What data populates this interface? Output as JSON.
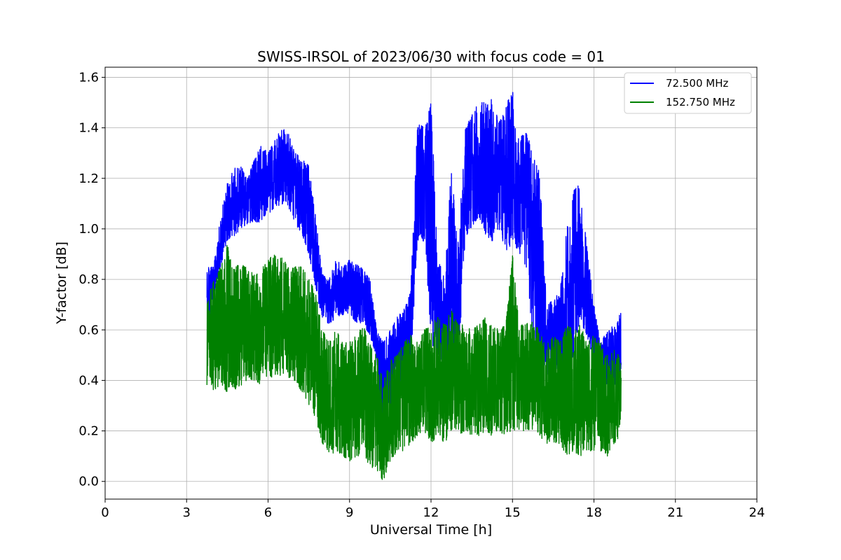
{
  "chart_data": {
    "type": "line",
    "title": "SWISS-IRSOL of 2023/06/30 with focus code = 01",
    "xlabel": "Universal Time [h]",
    "ylabel": "Y-factor [dB]",
    "xlim": [
      0,
      24
    ],
    "ylim": [
      -0.07,
      1.64
    ],
    "xticks": [
      0,
      3,
      6,
      9,
      12,
      15,
      18,
      21,
      24
    ],
    "yticks": [
      0.0,
      0.2,
      0.4,
      0.6,
      0.8,
      1.0,
      1.2,
      1.4,
      1.6
    ],
    "xtick_labels": [
      "0",
      "3",
      "6",
      "9",
      "12",
      "15",
      "18",
      "21",
      "24"
    ],
    "ytick_labels": [
      "0.0",
      "0.2",
      "0.4",
      "0.6",
      "0.8",
      "1.0",
      "1.2",
      "1.4",
      "1.6"
    ],
    "grid": true,
    "legend_position": "top-right",
    "series": [
      {
        "name": " 72.500 MHz",
        "color": "#0000ff",
        "x": [
          3.75,
          4.0,
          4.25,
          4.5,
          4.75,
          5.0,
          5.25,
          5.5,
          5.75,
          6.0,
          6.25,
          6.5,
          6.75,
          7.0,
          7.25,
          7.5,
          7.75,
          8.0,
          8.25,
          8.5,
          8.75,
          9.0,
          9.25,
          9.5,
          9.75,
          10.0,
          10.25,
          10.5,
          10.75,
          11.0,
          11.25,
          11.5,
          11.75,
          12.0,
          12.25,
          12.5,
          12.75,
          13.0,
          13.25,
          13.5,
          13.75,
          14.0,
          14.25,
          14.5,
          14.75,
          15.0,
          15.25,
          15.5,
          15.75,
          16.0,
          16.25,
          16.5,
          16.75,
          17.0,
          17.25,
          17.5,
          17.75,
          18.0,
          18.25,
          18.5,
          18.75,
          19.0
        ],
        "low": [
          0.58,
          0.72,
          0.85,
          0.95,
          0.97,
          1.0,
          1.02,
          1.03,
          1.02,
          1.06,
          1.08,
          1.1,
          1.08,
          1.02,
          0.98,
          0.9,
          0.75,
          0.65,
          0.62,
          0.65,
          0.66,
          0.65,
          0.63,
          0.62,
          0.58,
          0.48,
          0.2,
          0.3,
          0.35,
          0.38,
          0.45,
          0.95,
          0.95,
          0.55,
          0.48,
          0.42,
          0.42,
          0.45,
          0.95,
          1.0,
          1.05,
          0.98,
          0.95,
          1.0,
          0.9,
          0.95,
          0.9,
          0.85,
          0.55,
          0.48,
          0.42,
          0.45,
          0.42,
          0.45,
          0.5,
          0.65,
          0.55,
          0.45,
          0.4,
          0.38,
          0.38,
          0.4
        ],
        "high": [
          0.87,
          0.85,
          1.05,
          1.18,
          1.24,
          1.25,
          1.2,
          1.28,
          1.33,
          1.3,
          1.35,
          1.4,
          1.38,
          1.3,
          1.28,
          1.25,
          1.05,
          0.82,
          0.8,
          0.88,
          0.85,
          0.88,
          0.86,
          0.84,
          0.8,
          0.6,
          0.55,
          0.6,
          0.65,
          0.68,
          0.75,
          1.42,
          1.4,
          1.5,
          0.9,
          0.8,
          1.25,
          0.95,
          1.4,
          1.45,
          1.5,
          1.5,
          1.52,
          1.42,
          1.48,
          1.56,
          1.35,
          1.4,
          1.3,
          1.25,
          0.7,
          0.72,
          0.75,
          1.0,
          1.15,
          1.18,
          0.92,
          0.7,
          0.55,
          0.6,
          0.62,
          0.67
        ]
      },
      {
        "name": "152.750 MHz",
        "color": "#008000",
        "x": [
          3.75,
          4.0,
          4.25,
          4.5,
          4.75,
          5.0,
          5.25,
          5.5,
          5.75,
          6.0,
          6.25,
          6.5,
          6.75,
          7.0,
          7.25,
          7.5,
          7.75,
          8.0,
          8.25,
          8.5,
          8.75,
          9.0,
          9.25,
          9.5,
          9.75,
          10.0,
          10.25,
          10.5,
          10.75,
          11.0,
          11.25,
          11.5,
          11.75,
          12.0,
          12.25,
          12.5,
          12.75,
          13.0,
          13.25,
          13.5,
          13.75,
          14.0,
          14.25,
          14.5,
          14.75,
          15.0,
          15.25,
          15.5,
          15.75,
          16.0,
          16.25,
          16.5,
          16.75,
          17.0,
          17.25,
          17.5,
          17.75,
          18.0,
          18.25,
          18.5,
          18.75,
          19.0
        ],
        "low": [
          0.38,
          0.36,
          0.38,
          0.35,
          0.36,
          0.38,
          0.4,
          0.4,
          0.38,
          0.4,
          0.42,
          0.42,
          0.4,
          0.4,
          0.35,
          0.3,
          0.25,
          0.15,
          0.1,
          0.12,
          0.1,
          0.08,
          0.1,
          0.1,
          0.06,
          0.04,
          0.0,
          0.08,
          0.12,
          0.12,
          0.15,
          0.18,
          0.2,
          0.15,
          0.18,
          0.15,
          0.2,
          0.18,
          0.2,
          0.18,
          0.18,
          0.2,
          0.18,
          0.2,
          0.18,
          0.2,
          0.2,
          0.2,
          0.2,
          0.18,
          0.15,
          0.15,
          0.15,
          0.1,
          0.12,
          0.1,
          0.12,
          0.12,
          0.12,
          0.1,
          0.15,
          0.18
        ],
        "high": [
          0.72,
          0.8,
          0.85,
          0.95,
          0.85,
          0.86,
          0.85,
          0.82,
          0.84,
          0.88,
          0.9,
          0.89,
          0.85,
          0.85,
          0.85,
          0.8,
          0.75,
          0.6,
          0.55,
          0.6,
          0.55,
          0.55,
          0.58,
          0.62,
          0.55,
          0.5,
          0.4,
          0.48,
          0.5,
          0.55,
          0.58,
          0.55,
          0.6,
          0.62,
          0.65,
          0.62,
          0.68,
          0.62,
          0.62,
          0.6,
          0.62,
          0.65,
          0.62,
          0.6,
          0.62,
          0.9,
          0.62,
          0.62,
          0.65,
          0.6,
          0.55,
          0.58,
          0.55,
          0.62,
          0.6,
          0.62,
          0.55,
          0.58,
          0.55,
          0.5,
          0.52,
          0.5
        ]
      }
    ]
  }
}
